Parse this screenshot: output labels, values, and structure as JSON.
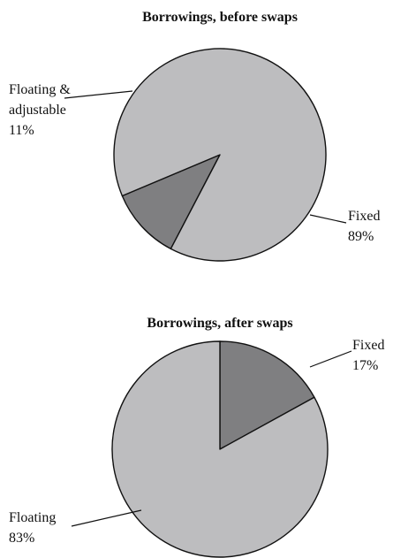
{
  "chart_data": [
    {
      "type": "pie",
      "title": "Borrowings, before swaps",
      "slices": [
        {
          "label_lines": [
            "Floating &",
            "adjustable"
          ],
          "percent_label": "11%",
          "value": 11,
          "color": "#7f7f81"
        },
        {
          "label_lines": [
            "Fixed"
          ],
          "percent_label": "89%",
          "value": 89,
          "color": "#bdbdbf"
        }
      ]
    },
    {
      "type": "pie",
      "title": "Borrowings, after swaps",
      "slices": [
        {
          "label_lines": [
            "Fixed"
          ],
          "percent_label": "17%",
          "value": 17,
          "color": "#7f7f81"
        },
        {
          "label_lines": [
            "Floating"
          ],
          "percent_label": "83%",
          "value": 83,
          "color": "#bdbdbf"
        }
      ]
    }
  ]
}
